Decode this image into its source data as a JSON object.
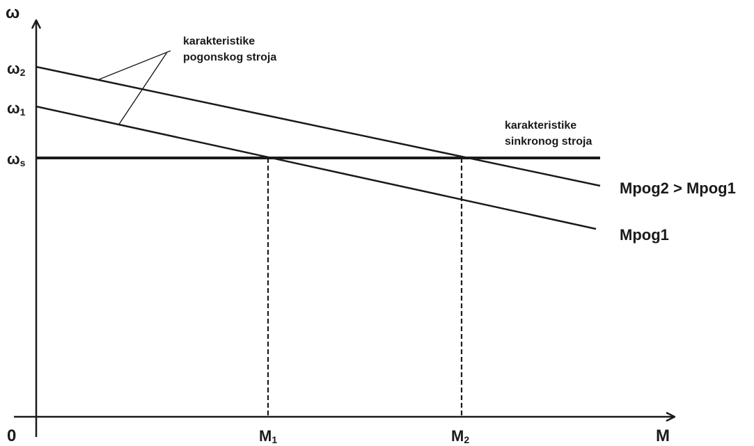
{
  "axes": {
    "y_label": "ω",
    "x_label": "M",
    "origin_label": "0"
  },
  "y_ticks": [
    {
      "base": "ω",
      "sub": "2"
    },
    {
      "base": "ω",
      "sub": "1"
    },
    {
      "base": "ω",
      "sub": "s"
    }
  ],
  "x_ticks": [
    {
      "base": "M",
      "sub": "1"
    },
    {
      "base": "M",
      "sub": "2"
    }
  ],
  "annotations": {
    "drive_machine_lines": [
      "karakteristike",
      "pogonskog stroja"
    ],
    "sync_machine_lines": [
      "karakteristike",
      "sinkronog stroja"
    ]
  },
  "curve_labels": {
    "upper": "Mpog2 > Mpog1",
    "lower": "Mpog1"
  },
  "colors": {
    "ink": "#1a1a1a",
    "background": "#ffffff"
  }
}
